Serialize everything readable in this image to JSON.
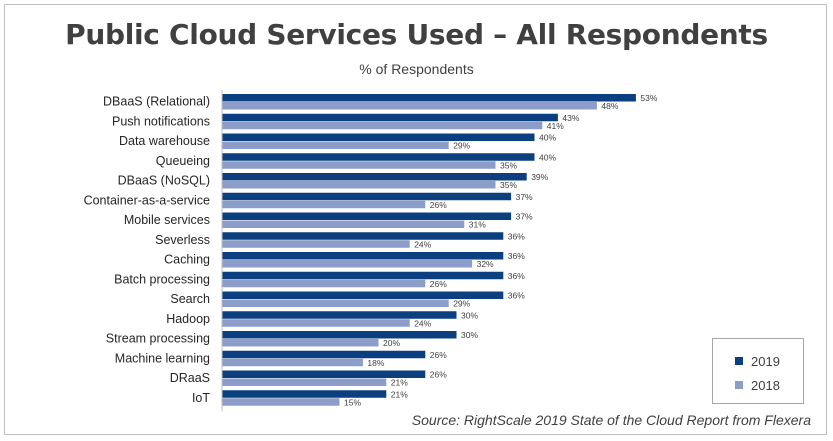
{
  "chart_data": {
    "type": "bar",
    "orientation": "horizontal",
    "title": "Public Cloud Services Used – All Respondents",
    "subtitle": "% of Respondents",
    "source": "Source: RightScale 2019 State of the Cloud Report from Flexera",
    "categories": [
      "DBaaS (Relational)",
      "Push notifications",
      "Data warehouse",
      "Queueing",
      "DBaaS (NoSQL)",
      "Container-as-a-service",
      "Mobile services",
      "Severless",
      "Caching",
      "Batch processing",
      "Search",
      "Hadoop",
      "Stream processing",
      "Machine learning",
      "DRaaS",
      "IoT"
    ],
    "series": [
      {
        "name": "2019",
        "color": "#0b3f7f",
        "values": [
          53,
          43,
          40,
          40,
          39,
          37,
          37,
          36,
          36,
          36,
          36,
          30,
          30,
          26,
          26,
          21
        ],
        "labels": [
          "53%",
          "43%",
          "40%",
          "40%",
          "39%",
          "37%",
          "37%",
          "36%",
          "36%",
          "36%",
          "36%",
          "30%",
          "30%",
          "26%",
          "26%",
          "21%"
        ]
      },
      {
        "name": "2018",
        "color": "#8b9dc8",
        "values": [
          48,
          41,
          29,
          35,
          35,
          26,
          31,
          24,
          32,
          26,
          29,
          24,
          20,
          18,
          21,
          15
        ],
        "labels": [
          "48%",
          "41%",
          "29%",
          "35%",
          "35%",
          "26%",
          "31%",
          "24%",
          "32%",
          "26%",
          "29%",
          "24%",
          "20%",
          "18%",
          "21%",
          "15%"
        ]
      }
    ],
    "xlim": [
      0,
      100
    ],
    "grid": false,
    "legend_position": "bottom-right",
    "axis_color": "#bfbfbf"
  }
}
